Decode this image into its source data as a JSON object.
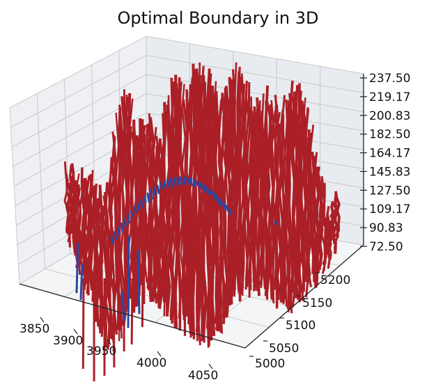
{
  "chart_data": {
    "type": "surface3d",
    "title": "Optimal Boundary in 3D",
    "x_ticks": [
      "3850",
      "3900",
      "3950",
      "4000",
      "4050"
    ],
    "y_ticks": [
      "5000",
      "5050",
      "5100",
      "5150",
      "5200"
    ],
    "z_ticks": [
      "72.50",
      "90.83",
      "109.17",
      "127.50",
      "145.83",
      "164.17",
      "182.50",
      "200.83",
      "219.17",
      "237.50"
    ],
    "xlim": [
      3825,
      4060
    ],
    "ylim": [
      4990,
      5215
    ],
    "zlim": [
      72.5,
      237.5
    ],
    "series": [
      {
        "kind": "surface",
        "color": "#ab1f26"
      },
      {
        "kind": "boundary-points",
        "color": "#2649a8"
      }
    ]
  }
}
